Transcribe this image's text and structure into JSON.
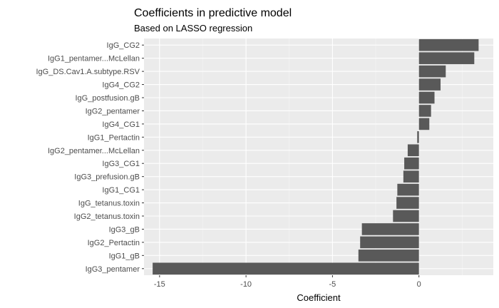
{
  "chart_data": {
    "type": "bar",
    "orientation": "horizontal",
    "title": "Coefficients in predictive model",
    "subtitle": "Based on LASSO regression",
    "xlabel": "Coefficient",
    "ylabel": "",
    "xlim": [
      -15.9,
      4.3
    ],
    "xticks": [
      -15,
      -10,
      -5,
      0
    ],
    "xtick_labels": [
      "-15",
      "-10",
      "-5",
      "0"
    ],
    "grid": true,
    "legend": "none",
    "colors": {
      "bar": "#595959",
      "panel": "#ebebeb",
      "grid_major": "#ffffff",
      "grid_minor": "#f5f5f5"
    },
    "categories": [
      "IgG_CG2",
      "IgG1_pentamer...McLellan",
      "IgG_DS.Cav1.A.subtype.RSV",
      "IgG4_CG2",
      "IgG_postfusion.gB",
      "IgG2_pentamer",
      "IgG4_CG1",
      "IgG1_Pertactin",
      "IgG2_pentamer...McLellan",
      "IgG3_CG1",
      "IgG3_prefusion.gB",
      "IgG1_CG1",
      "IgG_tetanus.toxin",
      "IgG2_tetanus.toxin",
      "IgG3_gB",
      "IgG2_Pertactin",
      "IgG1_gB",
      "IgG3_pentamer"
    ],
    "values": [
      3.45,
      3.2,
      1.55,
      1.25,
      0.9,
      0.7,
      0.6,
      -0.1,
      -0.65,
      -0.85,
      -0.9,
      -1.25,
      -1.3,
      -1.5,
      -3.3,
      -3.4,
      -3.5,
      -15.4
    ]
  }
}
